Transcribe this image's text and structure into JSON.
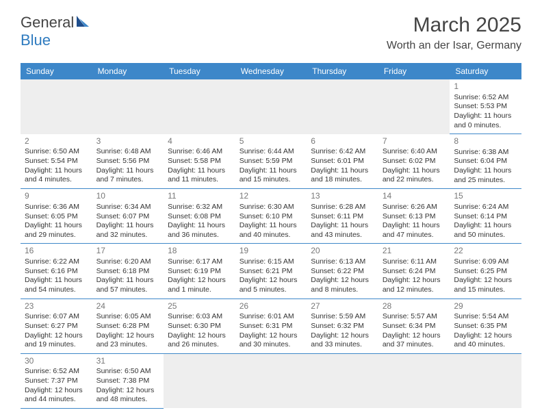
{
  "logo": {
    "part1": "General",
    "part2": "Blue"
  },
  "title": "March 2025",
  "location": "Worth an der Isar, Germany",
  "colors": {
    "header_bg": "#3d87c9",
    "header_text": "#ffffff",
    "border": "#3d87c9",
    "daynum": "#777777",
    "text": "#333333",
    "empty_bg": "#eeeeee"
  },
  "weekdays": [
    "Sunday",
    "Monday",
    "Tuesday",
    "Wednesday",
    "Thursday",
    "Friday",
    "Saturday"
  ],
  "weeks": [
    [
      null,
      null,
      null,
      null,
      null,
      null,
      {
        "n": "1",
        "sunrise": "Sunrise: 6:52 AM",
        "sunset": "Sunset: 5:53 PM",
        "daylight": "Daylight: 11 hours and 0 minutes."
      }
    ],
    [
      {
        "n": "2",
        "sunrise": "Sunrise: 6:50 AM",
        "sunset": "Sunset: 5:54 PM",
        "daylight": "Daylight: 11 hours and 4 minutes."
      },
      {
        "n": "3",
        "sunrise": "Sunrise: 6:48 AM",
        "sunset": "Sunset: 5:56 PM",
        "daylight": "Daylight: 11 hours and 7 minutes."
      },
      {
        "n": "4",
        "sunrise": "Sunrise: 6:46 AM",
        "sunset": "Sunset: 5:58 PM",
        "daylight": "Daylight: 11 hours and 11 minutes."
      },
      {
        "n": "5",
        "sunrise": "Sunrise: 6:44 AM",
        "sunset": "Sunset: 5:59 PM",
        "daylight": "Daylight: 11 hours and 15 minutes."
      },
      {
        "n": "6",
        "sunrise": "Sunrise: 6:42 AM",
        "sunset": "Sunset: 6:01 PM",
        "daylight": "Daylight: 11 hours and 18 minutes."
      },
      {
        "n": "7",
        "sunrise": "Sunrise: 6:40 AM",
        "sunset": "Sunset: 6:02 PM",
        "daylight": "Daylight: 11 hours and 22 minutes."
      },
      {
        "n": "8",
        "sunrise": "Sunrise: 6:38 AM",
        "sunset": "Sunset: 6:04 PM",
        "daylight": "Daylight: 11 hours and 25 minutes."
      }
    ],
    [
      {
        "n": "9",
        "sunrise": "Sunrise: 6:36 AM",
        "sunset": "Sunset: 6:05 PM",
        "daylight": "Daylight: 11 hours and 29 minutes."
      },
      {
        "n": "10",
        "sunrise": "Sunrise: 6:34 AM",
        "sunset": "Sunset: 6:07 PM",
        "daylight": "Daylight: 11 hours and 32 minutes."
      },
      {
        "n": "11",
        "sunrise": "Sunrise: 6:32 AM",
        "sunset": "Sunset: 6:08 PM",
        "daylight": "Daylight: 11 hours and 36 minutes."
      },
      {
        "n": "12",
        "sunrise": "Sunrise: 6:30 AM",
        "sunset": "Sunset: 6:10 PM",
        "daylight": "Daylight: 11 hours and 40 minutes."
      },
      {
        "n": "13",
        "sunrise": "Sunrise: 6:28 AM",
        "sunset": "Sunset: 6:11 PM",
        "daylight": "Daylight: 11 hours and 43 minutes."
      },
      {
        "n": "14",
        "sunrise": "Sunrise: 6:26 AM",
        "sunset": "Sunset: 6:13 PM",
        "daylight": "Daylight: 11 hours and 47 minutes."
      },
      {
        "n": "15",
        "sunrise": "Sunrise: 6:24 AM",
        "sunset": "Sunset: 6:14 PM",
        "daylight": "Daylight: 11 hours and 50 minutes."
      }
    ],
    [
      {
        "n": "16",
        "sunrise": "Sunrise: 6:22 AM",
        "sunset": "Sunset: 6:16 PM",
        "daylight": "Daylight: 11 hours and 54 minutes."
      },
      {
        "n": "17",
        "sunrise": "Sunrise: 6:20 AM",
        "sunset": "Sunset: 6:18 PM",
        "daylight": "Daylight: 11 hours and 57 minutes."
      },
      {
        "n": "18",
        "sunrise": "Sunrise: 6:17 AM",
        "sunset": "Sunset: 6:19 PM",
        "daylight": "Daylight: 12 hours and 1 minute."
      },
      {
        "n": "19",
        "sunrise": "Sunrise: 6:15 AM",
        "sunset": "Sunset: 6:21 PM",
        "daylight": "Daylight: 12 hours and 5 minutes."
      },
      {
        "n": "20",
        "sunrise": "Sunrise: 6:13 AM",
        "sunset": "Sunset: 6:22 PM",
        "daylight": "Daylight: 12 hours and 8 minutes."
      },
      {
        "n": "21",
        "sunrise": "Sunrise: 6:11 AM",
        "sunset": "Sunset: 6:24 PM",
        "daylight": "Daylight: 12 hours and 12 minutes."
      },
      {
        "n": "22",
        "sunrise": "Sunrise: 6:09 AM",
        "sunset": "Sunset: 6:25 PM",
        "daylight": "Daylight: 12 hours and 15 minutes."
      }
    ],
    [
      {
        "n": "23",
        "sunrise": "Sunrise: 6:07 AM",
        "sunset": "Sunset: 6:27 PM",
        "daylight": "Daylight: 12 hours and 19 minutes."
      },
      {
        "n": "24",
        "sunrise": "Sunrise: 6:05 AM",
        "sunset": "Sunset: 6:28 PM",
        "daylight": "Daylight: 12 hours and 23 minutes."
      },
      {
        "n": "25",
        "sunrise": "Sunrise: 6:03 AM",
        "sunset": "Sunset: 6:30 PM",
        "daylight": "Daylight: 12 hours and 26 minutes."
      },
      {
        "n": "26",
        "sunrise": "Sunrise: 6:01 AM",
        "sunset": "Sunset: 6:31 PM",
        "daylight": "Daylight: 12 hours and 30 minutes."
      },
      {
        "n": "27",
        "sunrise": "Sunrise: 5:59 AM",
        "sunset": "Sunset: 6:32 PM",
        "daylight": "Daylight: 12 hours and 33 minutes."
      },
      {
        "n": "28",
        "sunrise": "Sunrise: 5:57 AM",
        "sunset": "Sunset: 6:34 PM",
        "daylight": "Daylight: 12 hours and 37 minutes."
      },
      {
        "n": "29",
        "sunrise": "Sunrise: 5:54 AM",
        "sunset": "Sunset: 6:35 PM",
        "daylight": "Daylight: 12 hours and 40 minutes."
      }
    ],
    [
      {
        "n": "30",
        "sunrise": "Sunrise: 6:52 AM",
        "sunset": "Sunset: 7:37 PM",
        "daylight": "Daylight: 12 hours and 44 minutes."
      },
      {
        "n": "31",
        "sunrise": "Sunrise: 6:50 AM",
        "sunset": "Sunset: 7:38 PM",
        "daylight": "Daylight: 12 hours and 48 minutes."
      },
      null,
      null,
      null,
      null,
      null
    ]
  ]
}
